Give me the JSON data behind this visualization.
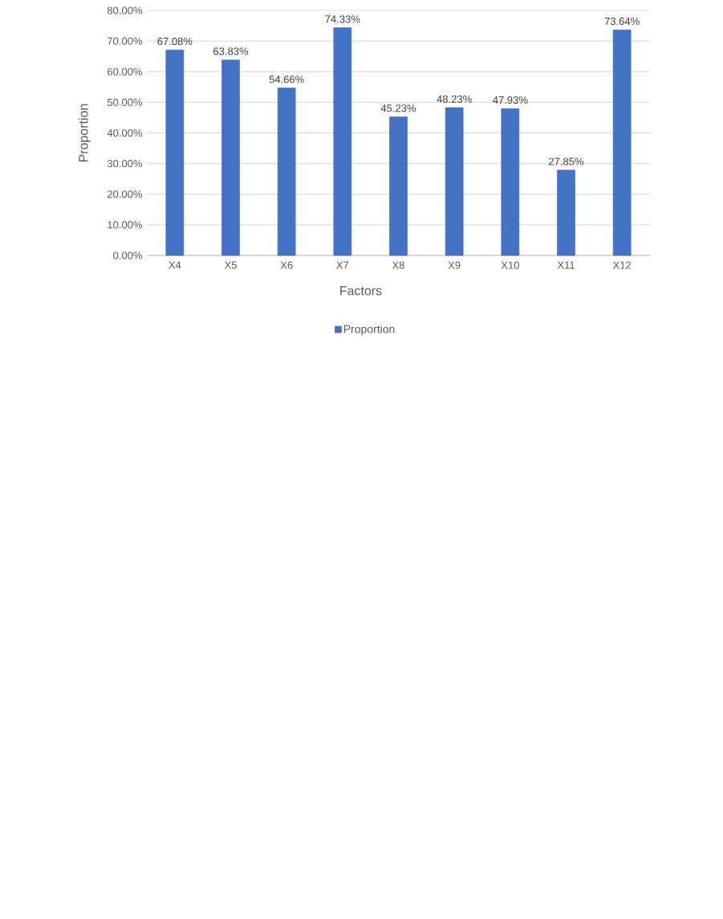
{
  "chart_data": {
    "type": "bar",
    "xlabel": "Factors",
    "ylabel": "Proportion",
    "categories": [
      "X4",
      "X5",
      "X6",
      "X7",
      "X8",
      "X9",
      "X10",
      "X11",
      "X12"
    ],
    "series": [
      {
        "name": "Proportion",
        "color": "#4472c4",
        "values": [
          67.08,
          63.83,
          54.66,
          74.33,
          45.23,
          48.23,
          47.93,
          27.85,
          73.64
        ],
        "value_labels": [
          "67.08%",
          "63.83%",
          "54.66%",
          "74.33%",
          "45.23%",
          "48.23%",
          "47.93%",
          "27.85%",
          "73.64%"
        ]
      }
    ],
    "ylim": [
      0,
      80
    ],
    "yticks": [
      {
        "value": 0,
        "label": "0.00%"
      },
      {
        "value": 10,
        "label": "10.00%"
      },
      {
        "value": 20,
        "label": "20.00%"
      },
      {
        "value": 30,
        "label": "30.00%"
      },
      {
        "value": 40,
        "label": "40.00%"
      },
      {
        "value": 50,
        "label": "50.00%"
      },
      {
        "value": 60,
        "label": "60.00%"
      },
      {
        "value": 70,
        "label": "70.00%"
      },
      {
        "value": 80,
        "label": "80.00%"
      }
    ],
    "grid": "y",
    "legend": "bottom"
  }
}
